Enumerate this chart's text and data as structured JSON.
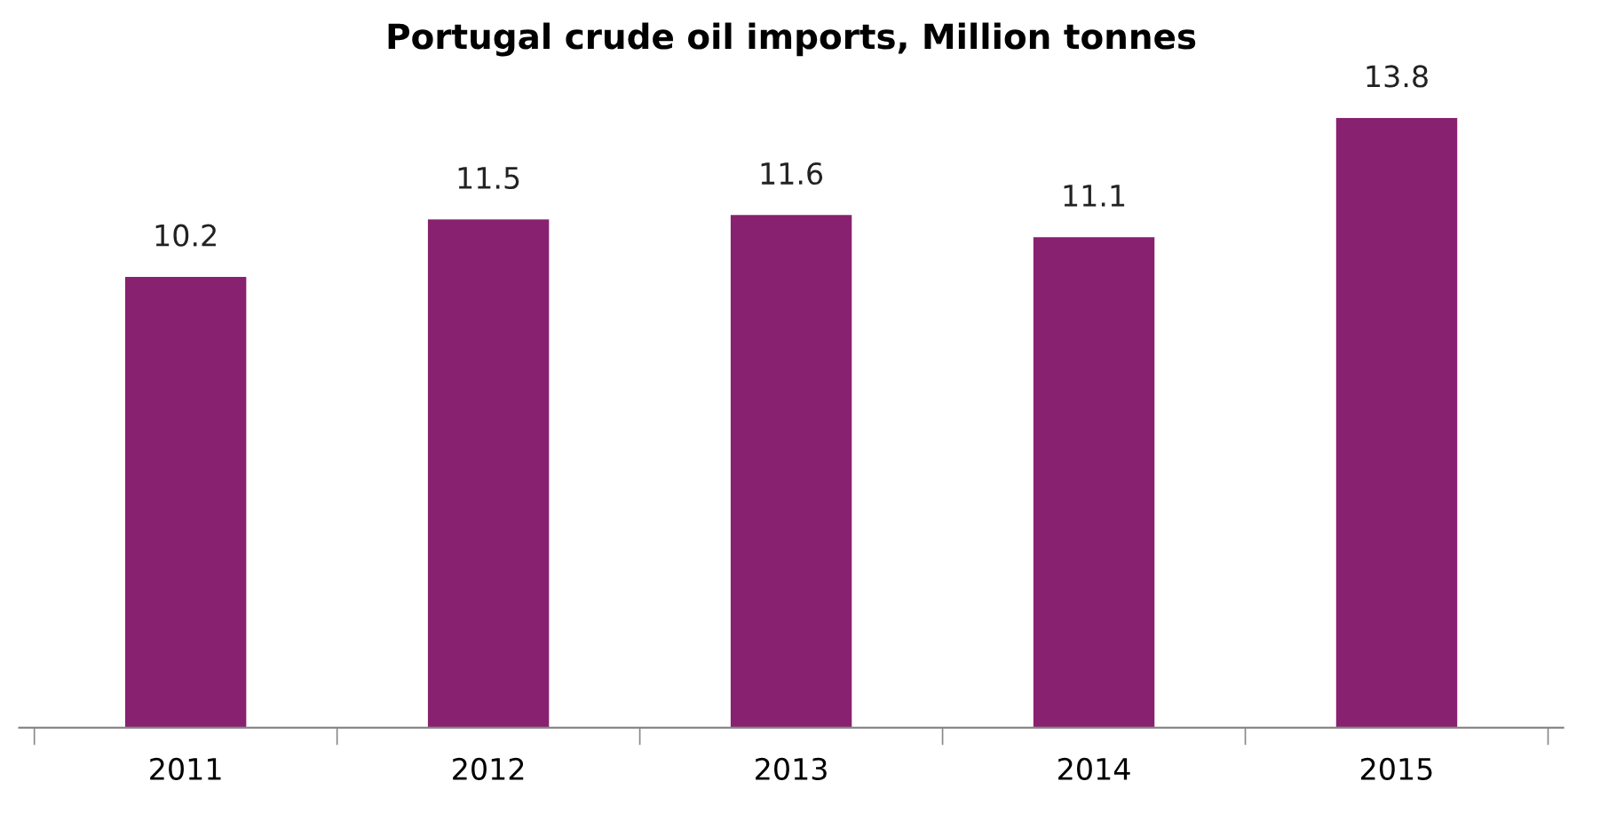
{
  "chart_data": {
    "type": "bar",
    "title": "Portugal crude oil imports, Million tonnes",
    "categories": [
      "2011",
      "2012",
      "2013",
      "2014",
      "2015"
    ],
    "values": [
      10.2,
      11.5,
      11.6,
      11.1,
      13.8
    ],
    "color": "#88216f",
    "data_labels": true,
    "grid": false,
    "legend": false
  }
}
